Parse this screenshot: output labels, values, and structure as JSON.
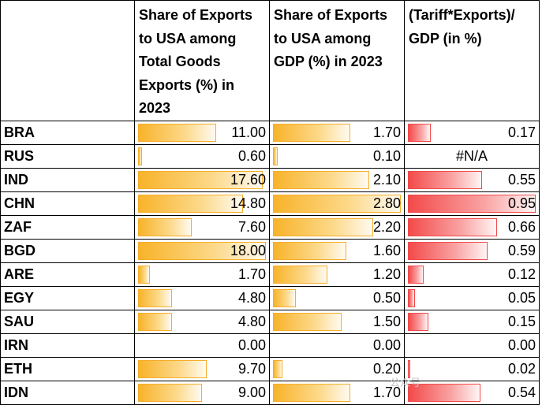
{
  "headers": {
    "col1": "Share of Exports to USA among Total Goods Exports (%) in 2023",
    "col2": "Share of Exports to USA among GDP (%) in 2023",
    "col3": "(Tariff*Exports)/ GDP (in %)"
  },
  "colors": {
    "bar1": "#f8b32a",
    "bar2": "#f8b32a",
    "bar3": "#f34a4a"
  },
  "scale": {
    "col1_max": 18.0,
    "col2_max": 2.8,
    "col3_max": 0.95
  },
  "rows": [
    {
      "code": "BRA",
      "share_total": "11.00",
      "share_gdp": "1.70",
      "tariff_gdp": "0.17"
    },
    {
      "code": "RUS",
      "share_total": "0.60",
      "share_gdp": "0.10",
      "tariff_gdp": "#N/A"
    },
    {
      "code": "IND",
      "share_total": "17.60",
      "share_gdp": "2.10",
      "tariff_gdp": "0.55"
    },
    {
      "code": "CHN",
      "share_total": "14.80",
      "share_gdp": "2.80",
      "tariff_gdp": "0.95"
    },
    {
      "code": "ZAF",
      "share_total": "7.60",
      "share_gdp": "2.20",
      "tariff_gdp": "0.66"
    },
    {
      "code": "BGD",
      "share_total": "18.00",
      "share_gdp": "1.60",
      "tariff_gdp": "0.59"
    },
    {
      "code": "ARE",
      "share_total": "1.70",
      "share_gdp": "1.20",
      "tariff_gdp": "0.12"
    },
    {
      "code": "EGY",
      "share_total": "4.80",
      "share_gdp": "0.50",
      "tariff_gdp": "0.05"
    },
    {
      "code": "SAU",
      "share_total": "4.80",
      "share_gdp": "1.50",
      "tariff_gdp": "0.15"
    },
    {
      "code": "IRN",
      "share_total": "0.00",
      "share_gdp": "0.00",
      "tariff_gdp": "0.00"
    },
    {
      "code": "ETH",
      "share_total": "9.70",
      "share_gdp": "0.20",
      "tariff_gdp": "0.02"
    },
    {
      "code": "IDN",
      "share_total": "9.00",
      "share_gdp": "1.70",
      "tariff_gdp": "0.54"
    }
  ],
  "watermark": "公众号"
}
